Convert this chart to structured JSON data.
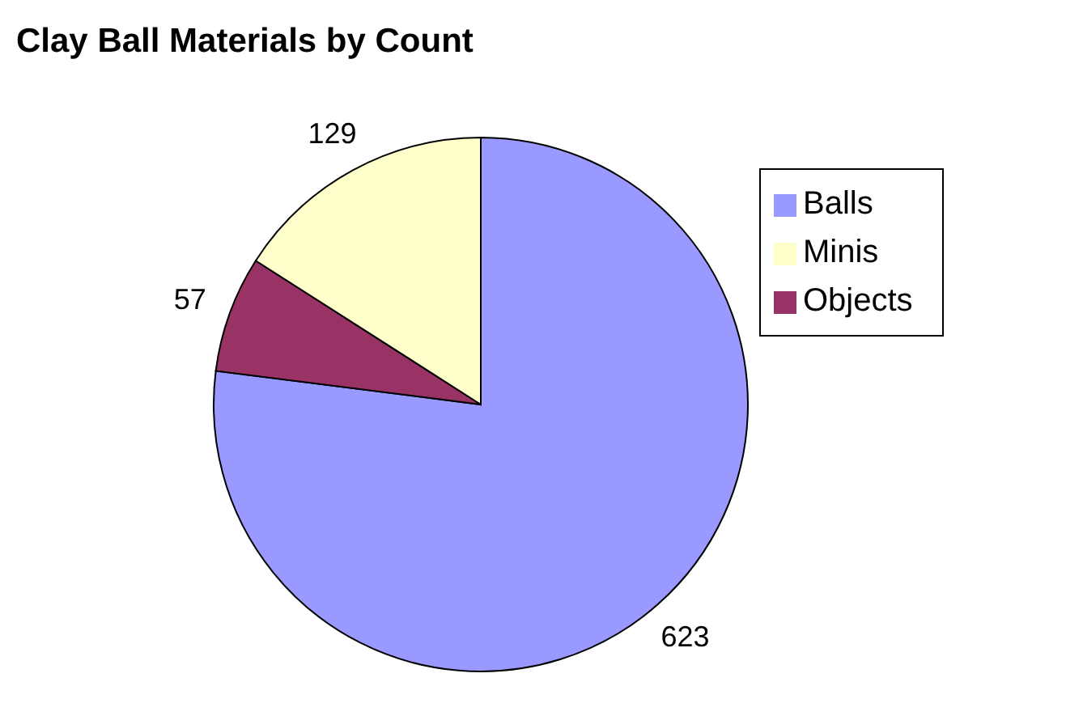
{
  "chart_data": {
    "type": "pie",
    "title": "Clay Ball Materials by Count",
    "categories": [
      "Balls",
      "Objects",
      "Minis"
    ],
    "values": [
      623,
      57,
      129
    ],
    "colors": [
      "#9999ff",
      "#993366",
      "#ffffcc"
    ],
    "data_labels": true,
    "legend": "right"
  }
}
